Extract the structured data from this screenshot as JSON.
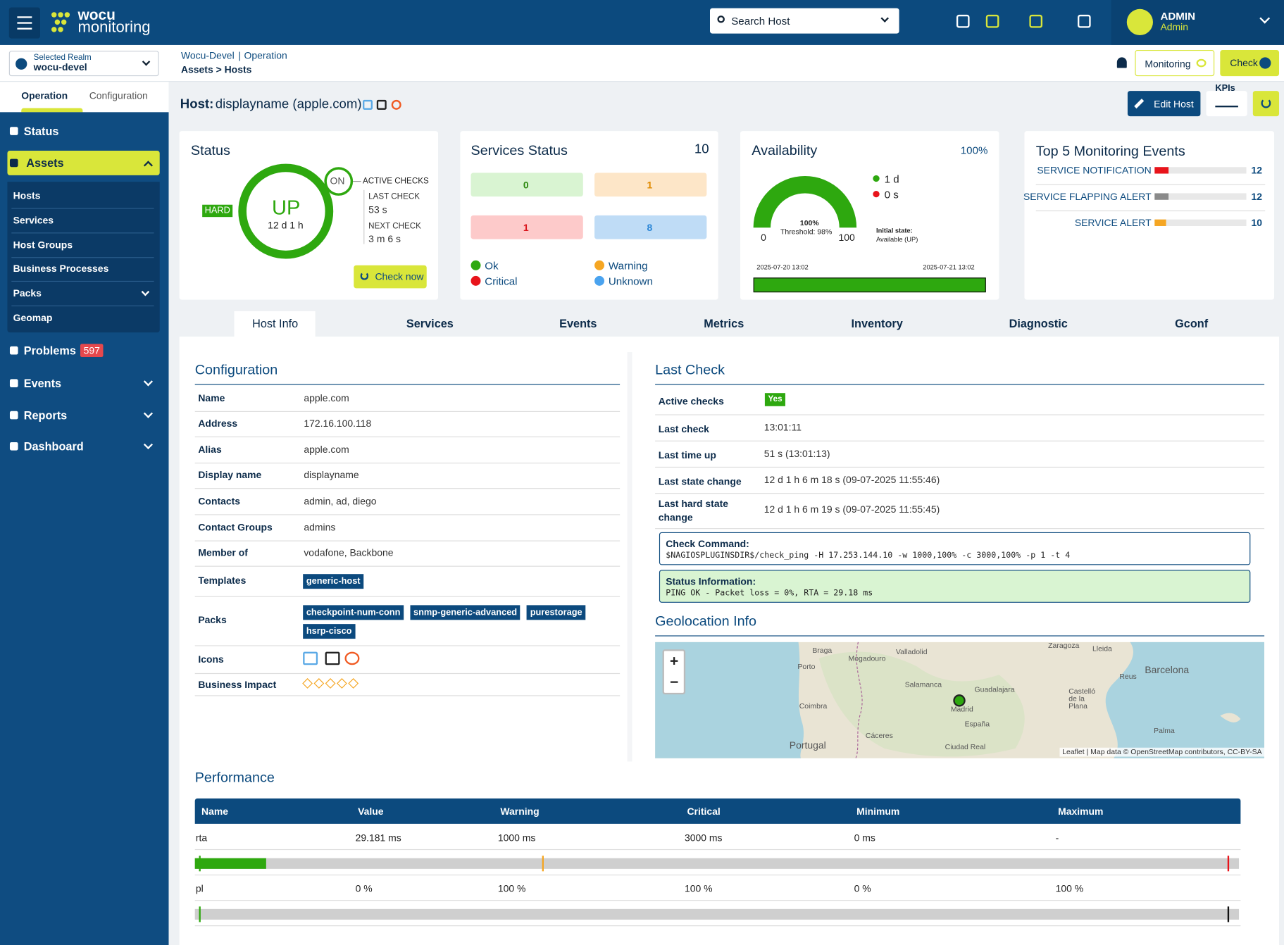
{
  "header": {
    "logo_top": "wocu",
    "logo_bottom": "monitoring",
    "search": "Search Host",
    "user_name": "ADMIN",
    "user_role": "Admin"
  },
  "realm": {
    "label": "Selected Realm",
    "value": "wocu-devel"
  },
  "breadcrumb": {
    "realm": "Wocu-Devel",
    "separator": "|",
    "section": "Operation",
    "path": "Assets > Hosts"
  },
  "actions": {
    "monitoring": "Monitoring",
    "check": "Check",
    "edit": "Edit Host",
    "kpis": "KPIs"
  },
  "sidebar": {
    "tabs": [
      "Operation",
      "Configuration"
    ],
    "menu": [
      {
        "label": "Status"
      },
      {
        "label": "Assets",
        "items": [
          "Hosts",
          "Services",
          "Host Groups",
          "Business Processes",
          "Packs",
          "Geomap"
        ]
      },
      {
        "label": "Problems",
        "badge": 597
      },
      {
        "label": "Events"
      },
      {
        "label": "Reports"
      },
      {
        "label": "Dashboard"
      }
    ]
  },
  "host": {
    "prefix": "Host:",
    "name": "displayname (apple.com)"
  },
  "status": {
    "title": "Status",
    "state": "UP",
    "duration": "12 d 1 h",
    "type": "HARD",
    "checks_state": "ON",
    "checks_label": "ACTIVE CHECKS",
    "last_check_label": "LAST CHECK",
    "last_check": "53 s",
    "next_check_label": "NEXT CHECK",
    "next_check": "3 m 6 s",
    "button": "Check now"
  },
  "services_status": {
    "title": "Services Status",
    "total": 10,
    "counts": [
      {
        "name": "Ok",
        "value": 0,
        "color": "#2ea80f",
        "bg": "#d9f4d2",
        "fg": "#2e8a10"
      },
      {
        "name": "Warning",
        "value": 1,
        "color": "#f5a623",
        "bg": "#fde6c8",
        "fg": "#e08a00"
      },
      {
        "name": "Critical",
        "value": 1,
        "color": "#e8141b",
        "bg": "#fdcaca",
        "fg": "#d9141b"
      },
      {
        "name": "Unknown",
        "value": 8,
        "color": "#4aa3ef",
        "bg": "#bfdcf6",
        "fg": "#2b86d6"
      }
    ]
  },
  "availability": {
    "title": "Availability",
    "gauge": {
      "value": 100,
      "value_label": "100%",
      "min": 0,
      "max": 100,
      "threshold": "Threshold: 98%"
    },
    "up": "1 d",
    "down": "0 s",
    "initial_label": "Initial state:",
    "initial_value": "Available (UP)",
    "start": "2025-07-20 13:02",
    "end": "2025-07-21 13:02"
  },
  "top_events": {
    "title": "Top 5 Monitoring Events",
    "events": [
      {
        "name": "SERVICE NOTIFICATION",
        "count": 12,
        "color": "#e8141b"
      },
      {
        "name": "SERVICE FLAPPING ALERT",
        "count": 12,
        "color": "#8a8a8a"
      },
      {
        "name": "SERVICE ALERT",
        "count": 10,
        "color": "#f5a623"
      }
    ]
  },
  "tabs": [
    "Host Info",
    "Services",
    "Events",
    "Metrics",
    "Inventory",
    "Diagnostic",
    "Gconf"
  ],
  "configuration": {
    "title": "Configuration",
    "rows": [
      {
        "label": "Name",
        "value": "apple.com"
      },
      {
        "label": "Address",
        "value": "172.16.100.118"
      },
      {
        "label": "Alias",
        "value": "apple.com"
      },
      {
        "label": "Display name",
        "value": "displayname"
      },
      {
        "label": "Contacts",
        "value": "admin, ad, diego"
      },
      {
        "label": "Contact Groups",
        "value": "admins"
      },
      {
        "label": "Member of",
        "value": "vodafone, Backbone"
      },
      {
        "label": "Templates",
        "tags": [
          "generic-host"
        ]
      },
      {
        "label": "Packs",
        "tags": [
          "checkpoint-num-conn",
          "snmp-generic-advanced",
          "purestorage",
          "hsrp-cisco"
        ]
      },
      {
        "label": "Icons"
      },
      {
        "label": "Business Impact"
      }
    ]
  },
  "last_check": {
    "title": "Last Check",
    "rows": [
      {
        "label": "Active checks",
        "badge": "Yes"
      },
      {
        "label": "Last check",
        "value": "13:01:11"
      },
      {
        "label": "Last time up",
        "value": "51 s (13:01:13)"
      },
      {
        "label": "Last state change",
        "value": "12 d 1 h 6 m 18 s (09-07-2025 11:55:46)"
      },
      {
        "label": "Last hard state change",
        "value": "12 d 1 h 6 m 19 s (09-07-2025 11:55:45)"
      }
    ],
    "command_label": "Check Command:",
    "command": "$NAGIOSPLUGINSDIR$/check_ping -H 17.253.144.10 -w 1000,100% -c 3000,100% -p 1 -t 4",
    "info_label": "Status Information:",
    "info": "PING OK - Packet loss = 0%, RTA = 29.18 ms"
  },
  "geolocation": {
    "title": "Geolocation Info",
    "zoom": [
      "+",
      "−"
    ],
    "labels": [
      "Braga",
      "Porto",
      "Mogadouro",
      "Valladolid",
      "Salamanca",
      "Guadalajara",
      "Madrid",
      "España",
      "Coimbra",
      "Cáceres",
      "Portugal",
      "Ciudad Real",
      "Zaragoza",
      "Lleida",
      "Reus",
      "Barcelona",
      "Castelló de la Plana",
      "Palma"
    ],
    "attribution": "Leaflet | Map data © OpenStreetMap contributors, CC-BY-SA"
  },
  "performance": {
    "title": "Performance",
    "columns": [
      "Name",
      "Value",
      "Warning",
      "Critical",
      "Minimum",
      "Maximum"
    ],
    "rows": [
      [
        "rta",
        "29.181 ms",
        "1000 ms",
        "3000 ms",
        "0 ms",
        "-"
      ],
      [
        "pl",
        "0 %",
        "100 %",
        "100 %",
        "0 %",
        "100 %"
      ]
    ]
  }
}
